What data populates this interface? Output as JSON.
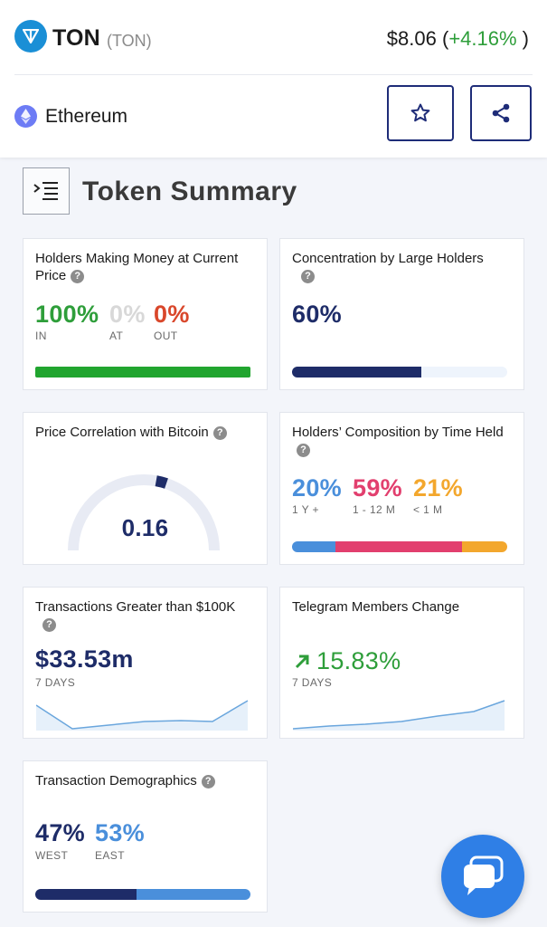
{
  "header": {
    "coin_name": "TON",
    "coin_symbol": "(TON)",
    "price": "$8.06",
    "price_change_open": "(",
    "price_change": "+4.16%",
    "price_change_close": " )",
    "chain": "Ethereum",
    "brand_color": "#1e2c78",
    "logo_color": "#1a8fd6"
  },
  "section": {
    "title": "Token Summary"
  },
  "cards": {
    "holders_money": {
      "title": "Holders Making Money at Current Price",
      "in_value": "100%",
      "in_label": "IN",
      "at_value": "0%",
      "at_label": "AT",
      "out_value": "0%",
      "out_label": "OUT",
      "bar": [
        1.0,
        0.0,
        0.0
      ]
    },
    "concentration": {
      "title": "Concentration by Large Holders",
      "value": "60%",
      "bar_fraction": 0.6
    },
    "price_correlation": {
      "title": "Price Correlation with Bitcoin",
      "value": "0.16",
      "gauge_fraction": 0.16
    },
    "composition": {
      "title": "Holders’ Composition by Time Held",
      "items": [
        {
          "value": "20%",
          "label": "1 Y +",
          "color": "#4a8fdb",
          "fraction": 0.2
        },
        {
          "value": "59%",
          "label": "1 - 12 M",
          "color": "#e23f6e",
          "fraction": 0.59
        },
        {
          "value": "21%",
          "label": "< 1 M",
          "color": "#f3a72d",
          "fraction": 0.21
        }
      ]
    },
    "transactions": {
      "title": "Transactions Greater than $100K",
      "value": "$33.53m",
      "period": "7 DAYS"
    },
    "telegram": {
      "title": "Telegram Members Change",
      "value": "15.83%",
      "period": "7 DAYS",
      "trend": "up"
    },
    "demographics": {
      "title": "Transaction Demographics",
      "west_value": "47%",
      "west_label": "WEST",
      "east_value": "53%",
      "east_label": "EAST",
      "bar": [
        0.47,
        0.53
      ]
    }
  },
  "icons": {
    "section": "indent-list-icon",
    "favorite": "star-icon",
    "share": "share-icon",
    "chat": "chat-bubbles-icon"
  }
}
